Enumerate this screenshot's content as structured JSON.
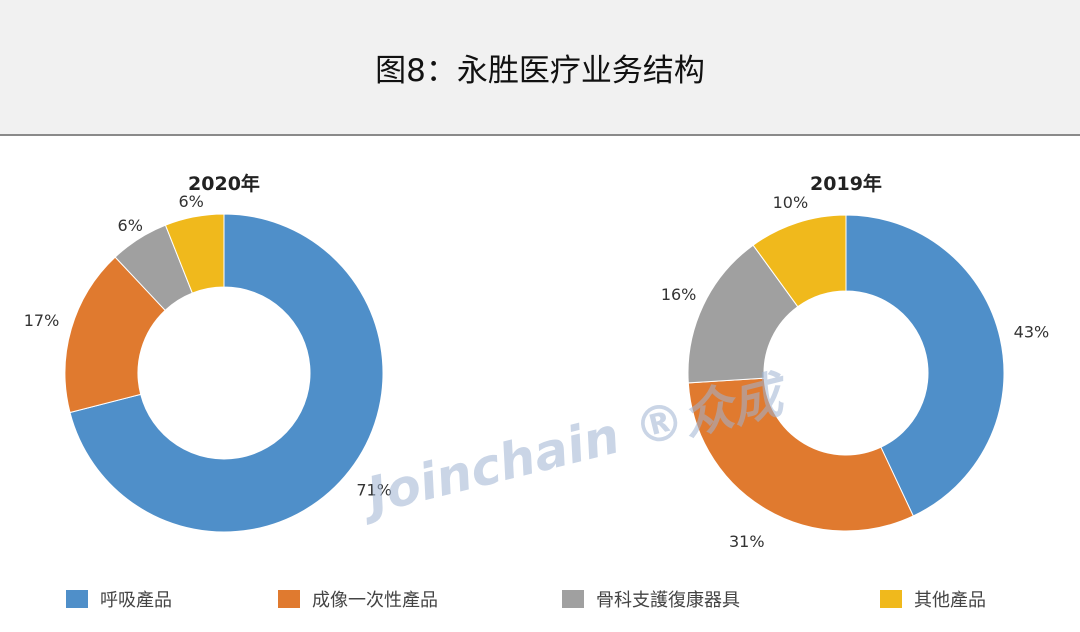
{
  "header": {
    "title": "图8：永胜医疗业务结构"
  },
  "watermark": "Joinchain 众成",
  "chart_data": [
    {
      "type": "pie",
      "donut": true,
      "title": "2020年",
      "categories": [
        "呼吸產品",
        "成像一次性產品",
        "骨科支護復康器具",
        "其他產品"
      ],
      "values": [
        71,
        17,
        6,
        6
      ],
      "labels": [
        "71%",
        "17%",
        "6%",
        "6%"
      ],
      "colors": [
        "#4f8fc9",
        "#e07a2f",
        "#a0a0a0",
        "#f0b91c"
      ]
    },
    {
      "type": "pie",
      "donut": true,
      "title": "2019年",
      "categories": [
        "呼吸產品",
        "成像一次性產品",
        "骨科支護復康器具",
        "其他產品"
      ],
      "values": [
        43,
        31,
        16,
        10
      ],
      "labels": [
        "43%",
        "31%",
        "16%",
        "10%"
      ],
      "colors": [
        "#4f8fc9",
        "#e07a2f",
        "#a0a0a0",
        "#f0b91c"
      ]
    }
  ],
  "legend": {
    "position": "bottom",
    "items": [
      {
        "label": "呼吸產品",
        "color": "#4f8fc9"
      },
      {
        "label": "成像一次性產品",
        "color": "#e07a2f"
      },
      {
        "label": "骨科支護復康器具",
        "color": "#a0a0a0"
      },
      {
        "label": "其他產品",
        "color": "#f0b91c"
      }
    ]
  }
}
